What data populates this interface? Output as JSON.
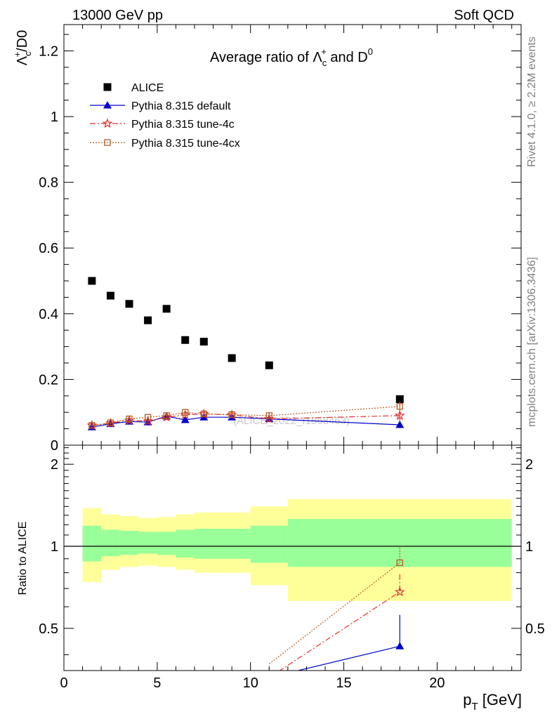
{
  "header": {
    "energy_label": "13000 GeV pp",
    "process_label": "Soft QCD",
    "side_label_top": "Rivet 4.1.0, ≥ 2.2M events",
    "side_label_bottom": "mcplots.cern.ch [arXiv:1306.3436]",
    "watermark": "(ALICE_2022_I1868463)"
  },
  "chart_data": [
    {
      "type": "scatter",
      "title": "Average ratio of Λc+ and D0",
      "title_parts": {
        "prefix": "Average ratio of ",
        "main": "Λ",
        "sub": "c",
        "sup": "+",
        "joiner": " and D",
        "sup2": "0"
      },
      "ylabel": "Λc+/D0",
      "ylabel_parts": {
        "main": "Λ",
        "sub": "c",
        "sup": "+",
        "rest": "/D0"
      },
      "xlim": [
        0,
        24.5
      ],
      "ylim": [
        0,
        1.28
      ],
      "yticks": [
        0,
        0.2,
        0.4,
        0.6,
        0.8,
        1,
        1.2
      ],
      "ytick_labels": [
        "0",
        "0.2",
        "0.4",
        "0.6",
        "0.8",
        "1",
        "1.2"
      ],
      "legend_position": "top-left",
      "series": [
        {
          "name": "ALICE",
          "marker": "square-filled",
          "color": "#000000",
          "x": [
            1.5,
            2.5,
            3.5,
            4.5,
            5.5,
            6.5,
            7.5,
            9,
            11,
            18
          ],
          "y": [
            0.5,
            0.455,
            0.43,
            0.38,
            0.415,
            0.32,
            0.315,
            0.265,
            0.243,
            0.14
          ]
        },
        {
          "name": "Pythia 8.315 default",
          "marker": "triangle-filled",
          "color": "#0000cc",
          "line": "solid",
          "x": [
            1.5,
            2.5,
            3.5,
            4.5,
            5.5,
            6.5,
            7.5,
            9,
            11,
            18
          ],
          "y": [
            0.055,
            0.065,
            0.072,
            0.07,
            0.088,
            0.077,
            0.085,
            0.085,
            0.08,
            0.062
          ],
          "yerr": [
            0.003,
            0.003,
            0.003,
            0.004,
            0.004,
            0.004,
            0.005,
            0.006,
            0.008,
            0.01
          ]
        },
        {
          "name": "Pythia 8.315 tune-4c",
          "marker": "star-open",
          "color": "#e03030",
          "line": "dashdot",
          "x": [
            1.5,
            2.5,
            3.5,
            4.5,
            5.5,
            6.5,
            7.5,
            9,
            11,
            18
          ],
          "y": [
            0.06,
            0.067,
            0.075,
            0.073,
            0.085,
            0.092,
            0.095,
            0.092,
            0.08,
            0.09
          ],
          "yerr": [
            0.003,
            0.003,
            0.003,
            0.004,
            0.004,
            0.005,
            0.006,
            0.007,
            0.01,
            0.015
          ]
        },
        {
          "name": "Pythia 8.315 tune-4cx",
          "marker": "square-open",
          "color": "#b85a20",
          "line": "dotted",
          "x": [
            1.5,
            2.5,
            3.5,
            4.5,
            5.5,
            6.5,
            7.5,
            9,
            11,
            18
          ],
          "y": [
            0.06,
            0.068,
            0.08,
            0.085,
            0.09,
            0.1,
            0.095,
            0.093,
            0.09,
            0.118
          ],
          "yerr": [
            0.003,
            0.003,
            0.003,
            0.004,
            0.004,
            0.005,
            0.006,
            0.007,
            0.01,
            0.015
          ]
        }
      ]
    },
    {
      "type": "line",
      "ylabel": "Ratio to ALICE",
      "xlabel": "pT [GeV]",
      "xlabel_parts": {
        "main": "p",
        "sub": "T",
        "rest": " [GeV]"
      },
      "xlim": [
        0,
        24.5
      ],
      "ylim": [
        0.35,
        2.35
      ],
      "xticks": [
        0,
        5,
        10,
        15,
        20
      ],
      "xtick_labels": [
        "0",
        "5",
        "10",
        "15",
        "20"
      ],
      "yticks": [
        0.5,
        1,
        2
      ],
      "ytick_labels": [
        "0.5",
        "1",
        "2"
      ],
      "reference_line": 1,
      "uncertainty_bands": {
        "x_edges": [
          1,
          2,
          3,
          4,
          5,
          6,
          7,
          8,
          10,
          12,
          24
        ],
        "inner_low": [
          0.88,
          0.92,
          0.93,
          0.94,
          0.93,
          0.91,
          0.9,
          0.9,
          0.87,
          0.84
        ],
        "inner_high": [
          1.19,
          1.15,
          1.14,
          1.13,
          1.13,
          1.15,
          1.16,
          1.16,
          1.19,
          1.26
        ],
        "outer_low": [
          0.74,
          0.82,
          0.84,
          0.85,
          0.84,
          0.82,
          0.8,
          0.8,
          0.72,
          0.63
        ],
        "outer_high": [
          1.38,
          1.31,
          1.29,
          1.27,
          1.28,
          1.31,
          1.33,
          1.33,
          1.4,
          1.49
        ],
        "inner_color": "#99ff99",
        "outer_color": "#ffff99"
      },
      "series": [
        {
          "name": "Pythia 8.315 default",
          "color": "#0000cc",
          "line": "solid",
          "marker": "triangle-filled",
          "x": [
            11,
            18
          ],
          "y": [
            0.33,
            0.43
          ],
          "yerr_upper": [
            0,
            0.13
          ],
          "visible_from": 18
        },
        {
          "name": "Pythia 8.315 tune-4c",
          "color": "#e03030",
          "line": "dashdot",
          "marker": "star-open",
          "x": [
            11,
            18
          ],
          "y": [
            0.33,
            0.68
          ],
          "yerr_upper": [
            0,
            0.11
          ],
          "visible_from": 18
        },
        {
          "name": "Pythia 8.315 tune-4cx",
          "color": "#b85a20",
          "line": "dotted",
          "marker": "square-open",
          "x": [
            11,
            18
          ],
          "y": [
            0.37,
            0.87
          ],
          "yerr_upper": [
            0,
            0.12
          ],
          "visible_from": 18
        }
      ]
    }
  ]
}
